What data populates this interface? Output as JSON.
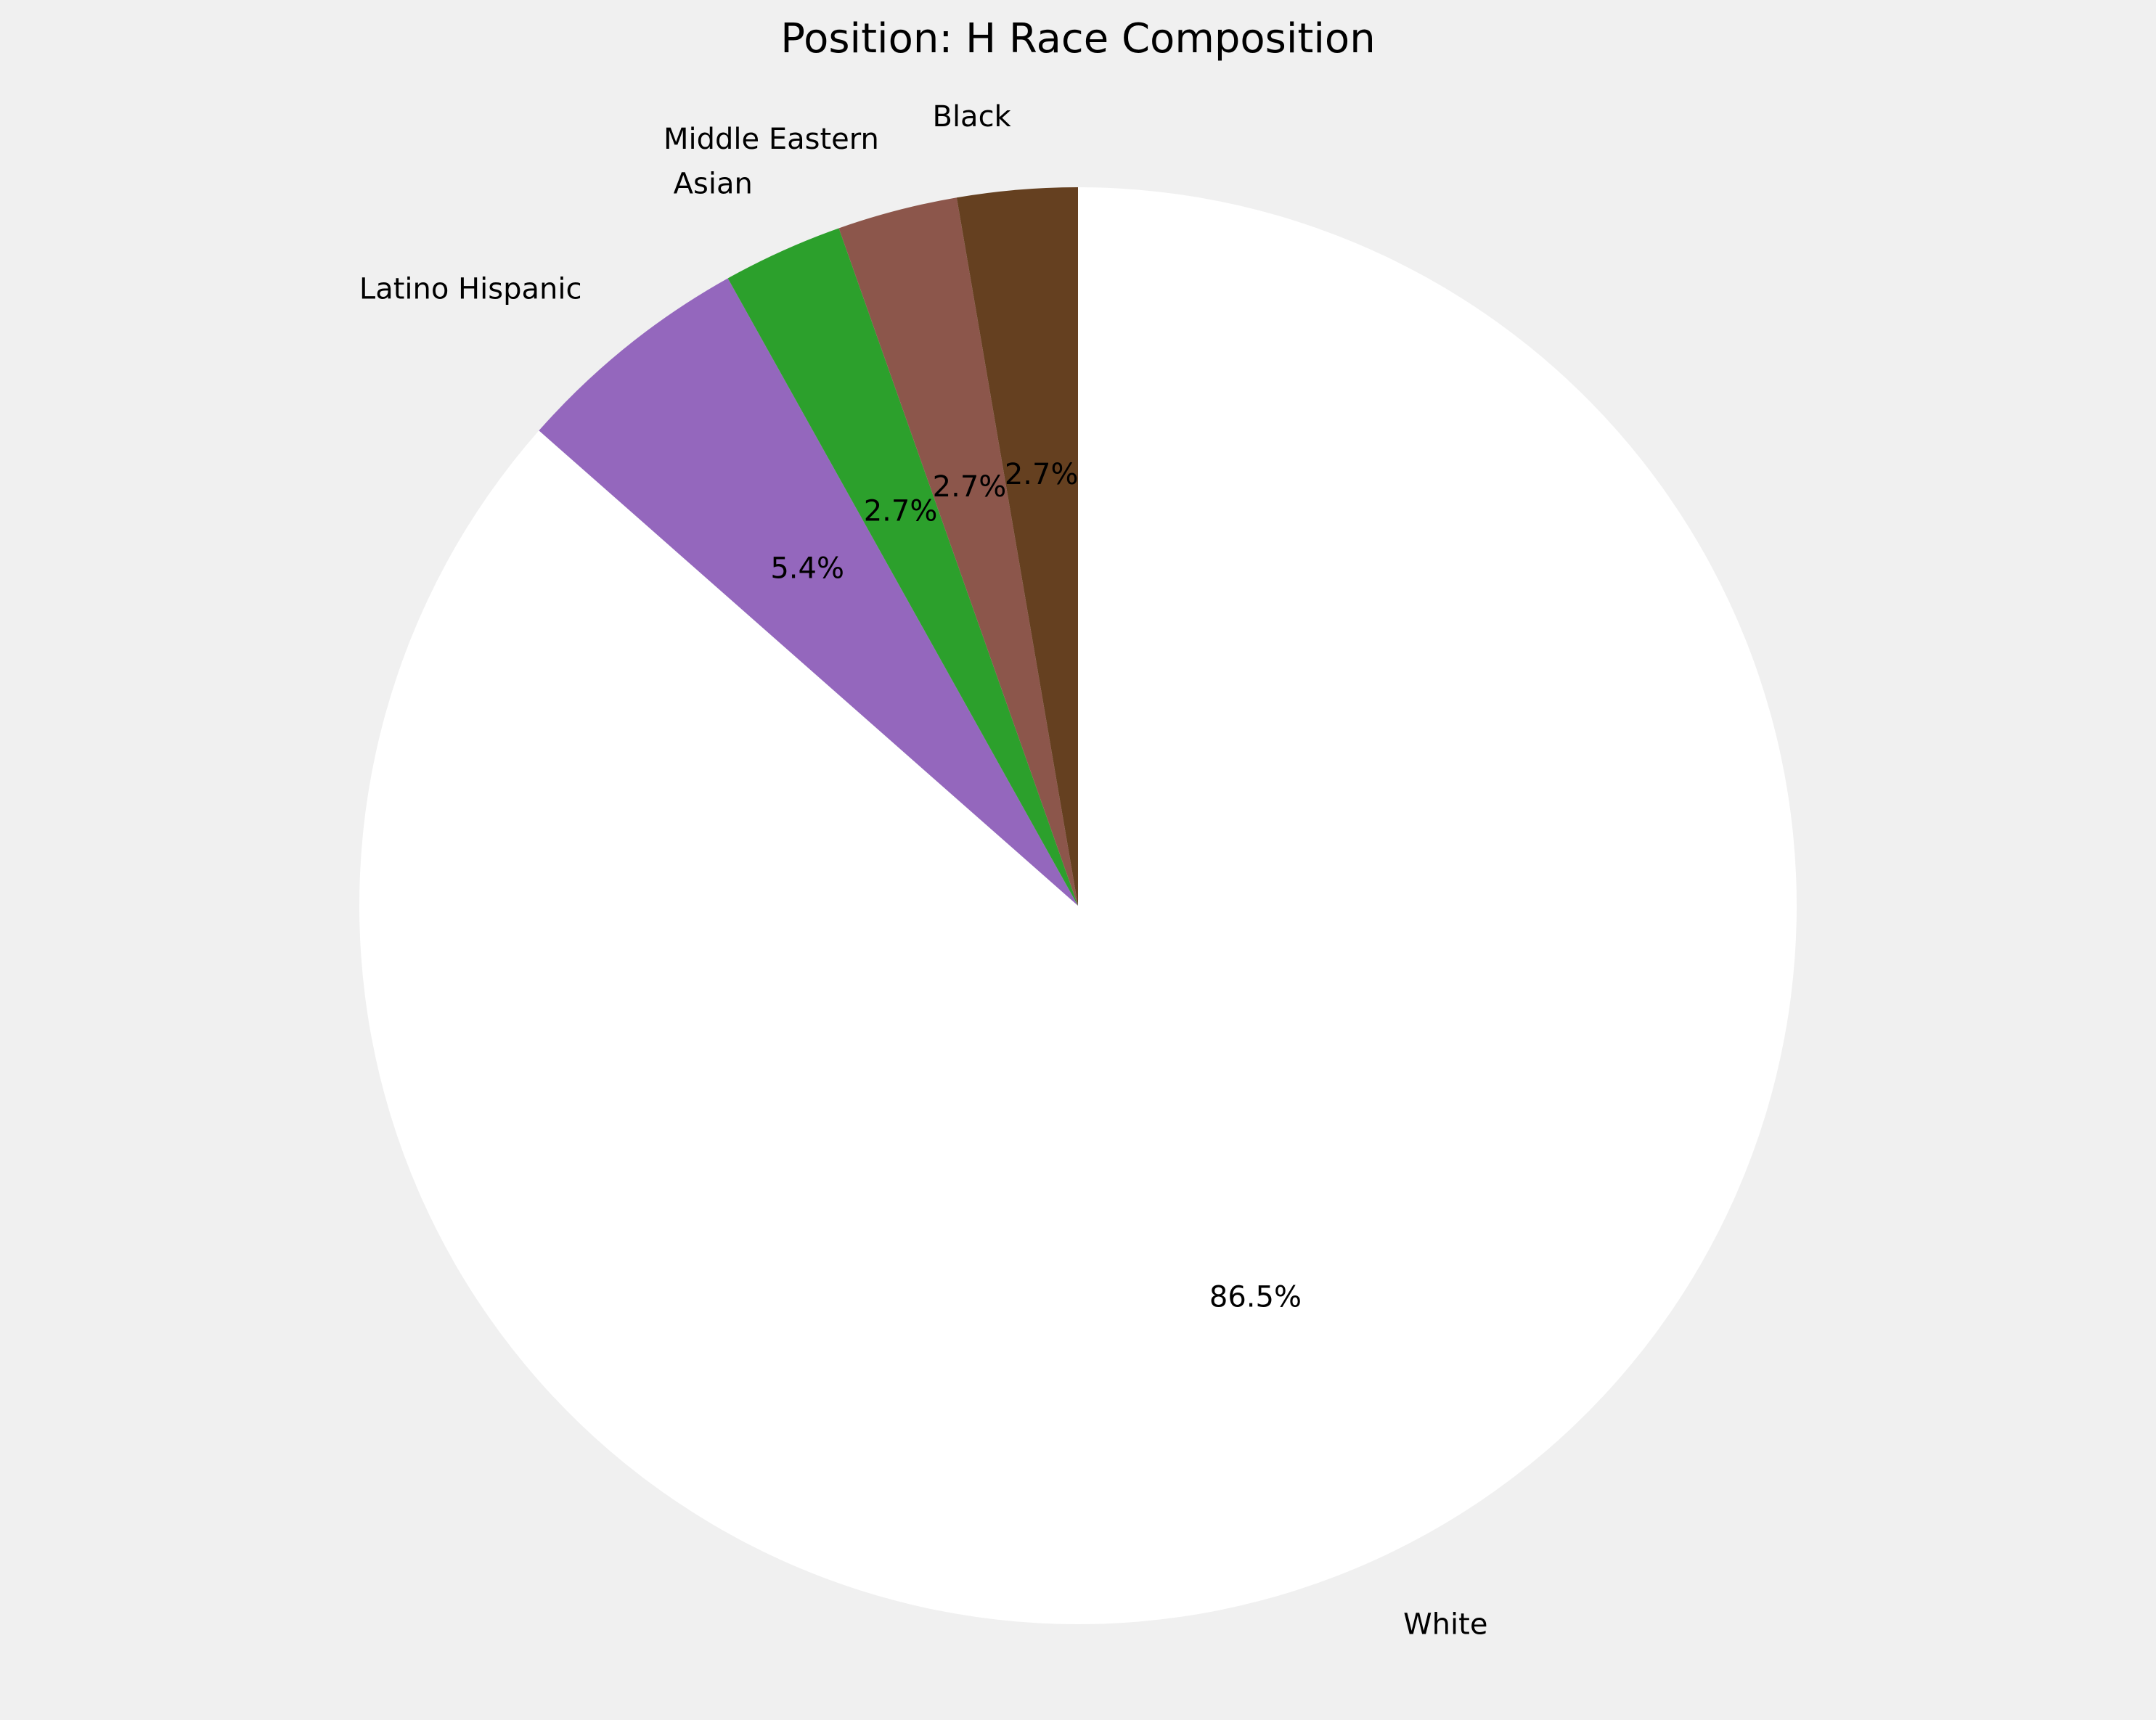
{
  "chart_data": {
    "type": "pie",
    "title": "Position: H Race Composition",
    "slices": [
      {
        "label": "White",
        "value": 86.5,
        "pct_label": "86.5%",
        "color": "#ffffff"
      },
      {
        "label": "Latino Hispanic",
        "value": 5.4,
        "pct_label": "5.4%",
        "color": "#9467bd"
      },
      {
        "label": "Asian",
        "value": 2.7,
        "pct_label": "2.7%",
        "color": "#2ca02c"
      },
      {
        "label": "Middle Eastern",
        "value": 2.7,
        "pct_label": "2.7%",
        "color": "#8c564b"
      },
      {
        "label": "Black",
        "value": 2.7,
        "pct_label": "2.7%",
        "color": "#654020"
      }
    ],
    "background_color": "#f0f0f0"
  }
}
